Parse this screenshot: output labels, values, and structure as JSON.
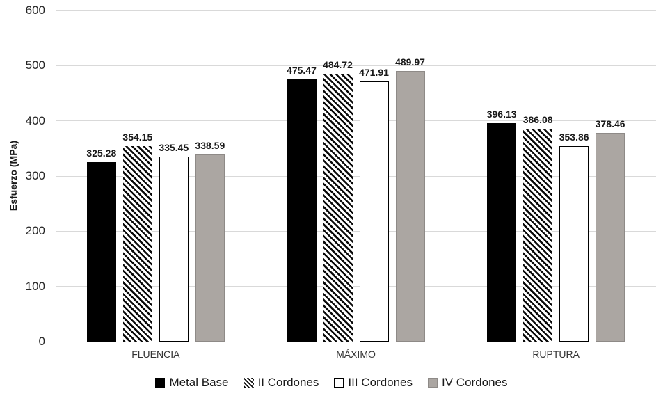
{
  "chart_data": {
    "type": "bar",
    "title": "",
    "xlabel": "",
    "ylabel": "Esfuerzo (MPa)",
    "categories": [
      "FLUENCIA",
      "MÁXIMO",
      "RUPTURA"
    ],
    "series": [
      {
        "name": "Metal Base",
        "style": "solid-black",
        "values": [
          325.28,
          475.47,
          396.13
        ]
      },
      {
        "name": "II Cordones",
        "style": "hatch-diagonal",
        "values": [
          354.15,
          484.72,
          386.08
        ]
      },
      {
        "name": "III Cordones",
        "style": "white-outlined",
        "values": [
          335.45,
          471.91,
          353.86
        ]
      },
      {
        "name": "IV Cordones",
        "style": "solid-gray",
        "values": [
          338.59,
          489.97,
          378.46
        ]
      }
    ],
    "value_label_decimals": 2,
    "ylim": [
      0,
      600
    ],
    "yticks": [
      0,
      100,
      200,
      300,
      400,
      500,
      600
    ],
    "grid": true,
    "legend_position": "bottom",
    "colors": {
      "bar_black": "#000000",
      "bar_gray": "#aba6a2",
      "bar_gray_border": "#8e8a87",
      "bar_outline": "#000000",
      "gridline": "#d9d9d9",
      "baseline": "#bfbfbf",
      "text": "#262626"
    }
  }
}
